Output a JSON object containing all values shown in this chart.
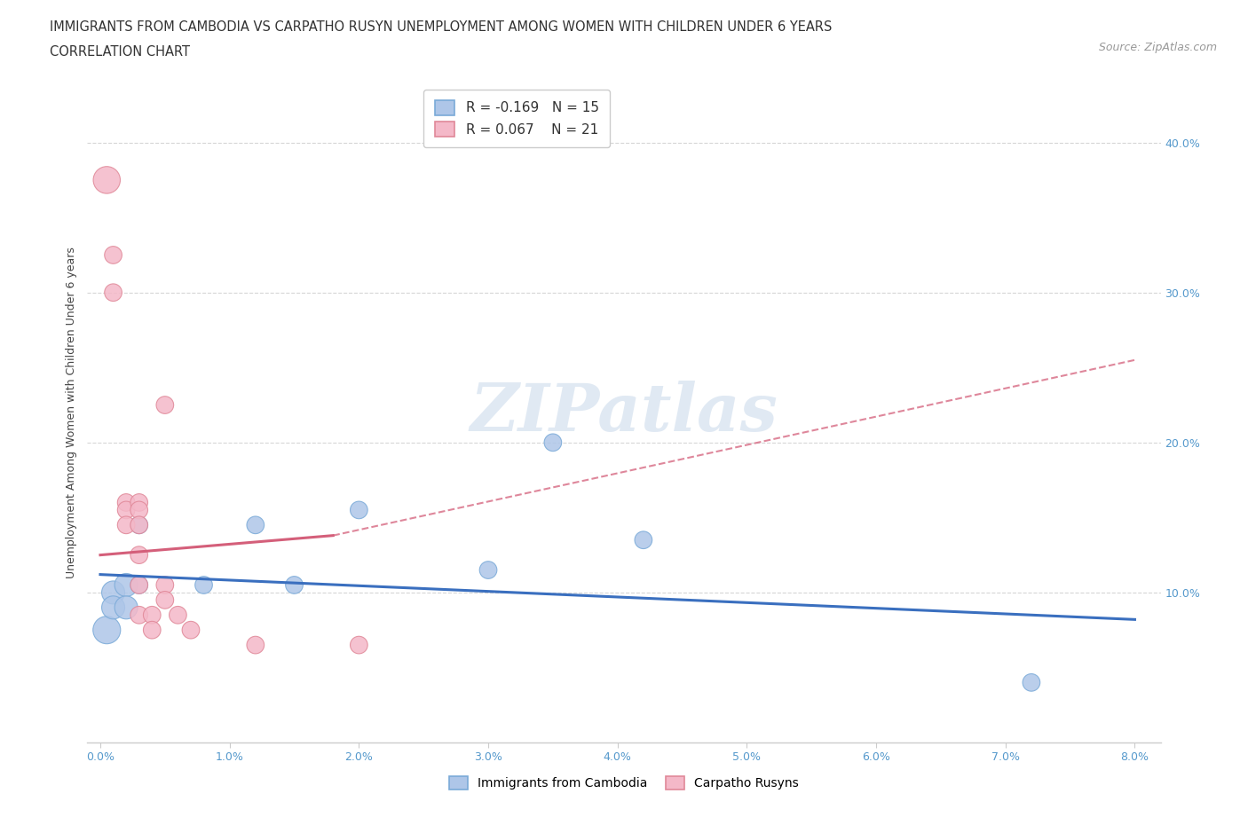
{
  "title_line1": "IMMIGRANTS FROM CAMBODIA VS CARPATHO RUSYN UNEMPLOYMENT AMONG WOMEN WITH CHILDREN UNDER 6 YEARS",
  "title_line2": "CORRELATION CHART",
  "source_text": "Source: ZipAtlas.com",
  "ylabel": "Unemployment Among Women with Children Under 6 years",
  "xlim": [
    -0.001,
    0.082
  ],
  "ylim": [
    0.0,
    0.44
  ],
  "xtick_labels": [
    "0.0%",
    "1.0%",
    "2.0%",
    "3.0%",
    "4.0%",
    "5.0%",
    "6.0%",
    "7.0%",
    "8.0%"
  ],
  "xtick_vals": [
    0.0,
    0.01,
    0.02,
    0.03,
    0.04,
    0.05,
    0.06,
    0.07,
    0.08
  ],
  "ytick_labels": [
    "10.0%",
    "20.0%",
    "30.0%",
    "40.0%"
  ],
  "ytick_vals": [
    0.1,
    0.2,
    0.3,
    0.4
  ],
  "watermark": "ZIPatlas",
  "legend_blue_r": "-0.169",
  "legend_blue_n": "15",
  "legend_pink_r": "0.067",
  "legend_pink_n": "21",
  "blue_color": "#aec6e8",
  "blue_line_color": "#3a6fbf",
  "pink_color": "#f4b8c8",
  "pink_line_color": "#d45f7a",
  "blue_scatter": [
    [
      0.0005,
      0.075
    ],
    [
      0.001,
      0.1
    ],
    [
      0.001,
      0.09
    ],
    [
      0.002,
      0.105
    ],
    [
      0.002,
      0.09
    ],
    [
      0.003,
      0.145
    ],
    [
      0.003,
      0.105
    ],
    [
      0.008,
      0.105
    ],
    [
      0.012,
      0.145
    ],
    [
      0.015,
      0.105
    ],
    [
      0.02,
      0.155
    ],
    [
      0.03,
      0.115
    ],
    [
      0.035,
      0.2
    ],
    [
      0.042,
      0.135
    ],
    [
      0.072,
      0.04
    ]
  ],
  "pink_scatter": [
    [
      0.0005,
      0.375
    ],
    [
      0.001,
      0.325
    ],
    [
      0.001,
      0.3
    ],
    [
      0.002,
      0.16
    ],
    [
      0.002,
      0.155
    ],
    [
      0.002,
      0.145
    ],
    [
      0.003,
      0.16
    ],
    [
      0.003,
      0.155
    ],
    [
      0.003,
      0.145
    ],
    [
      0.003,
      0.125
    ],
    [
      0.003,
      0.105
    ],
    [
      0.003,
      0.085
    ],
    [
      0.004,
      0.085
    ],
    [
      0.004,
      0.075
    ],
    [
      0.005,
      0.225
    ],
    [
      0.005,
      0.105
    ],
    [
      0.005,
      0.095
    ],
    [
      0.006,
      0.085
    ],
    [
      0.007,
      0.075
    ],
    [
      0.012,
      0.065
    ],
    [
      0.02,
      0.065
    ]
  ],
  "blue_trend": [
    0.0,
    0.08,
    0.112,
    0.082
  ],
  "pink_trend_solid": [
    0.0,
    0.018,
    0.125,
    0.138
  ],
  "pink_trend_dashed": [
    0.018,
    0.08,
    0.138,
    0.255
  ],
  "background_color": "#ffffff",
  "grid_color": "#cccccc"
}
